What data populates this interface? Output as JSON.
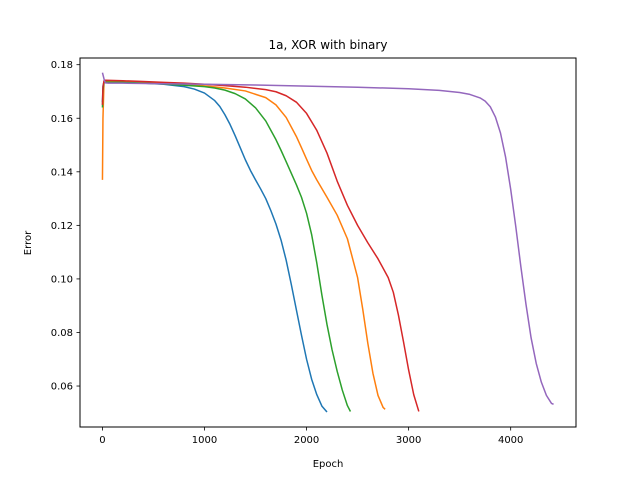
{
  "chart_data": {
    "type": "line",
    "title": "1a, XOR with binary",
    "xlabel": "Epoch",
    "ylabel": "Error",
    "xlim": [
      -220,
      4640
    ],
    "ylim": [
      0.0447,
      0.1825
    ],
    "xticks": [
      0,
      1000,
      2000,
      3000,
      4000
    ],
    "yticks": [
      0.06,
      0.08,
      0.1,
      0.12,
      0.14,
      0.16,
      0.18
    ],
    "xtick_labels": [
      "0",
      "1000",
      "2000",
      "3000",
      "4000"
    ],
    "ytick_labels": [
      "0.06",
      "0.08",
      "0.10",
      "0.12",
      "0.14",
      "0.16",
      "0.18"
    ],
    "grid": false,
    "series": [
      {
        "color": "#1f77b4",
        "x": [
          0,
          5,
          15,
          30,
          200,
          400,
          600,
          800,
          900,
          1000,
          1100,
          1150,
          1200,
          1250,
          1300,
          1350,
          1400,
          1450,
          1500,
          1550,
          1600,
          1650,
          1700,
          1750,
          1800,
          1850,
          1900,
          1950,
          2000,
          2050,
          2100,
          2150,
          2200
        ],
        "y": [
          0.166,
          0.172,
          0.1735,
          0.1736,
          0.1734,
          0.1731,
          0.1727,
          0.1718,
          0.1709,
          0.1694,
          0.1666,
          0.1644,
          0.1613,
          0.1577,
          0.1535,
          0.149,
          0.1445,
          0.1405,
          0.137,
          0.1336,
          0.13,
          0.1255,
          0.1205,
          0.1145,
          0.107,
          0.098,
          0.0885,
          0.079,
          0.07,
          0.0625,
          0.0568,
          0.0525,
          0.0503
        ]
      },
      {
        "color": "#ff7f0e",
        "x": [
          0,
          5,
          15,
          30,
          200,
          400,
          600,
          800,
          1000,
          1200,
          1400,
          1600,
          1700,
          1800,
          1900,
          1950,
          2000,
          2050,
          2100,
          2200,
          2300,
          2400,
          2500,
          2550,
          2600,
          2650,
          2700,
          2750,
          2770
        ],
        "y": [
          0.137,
          0.16,
          0.1735,
          0.1738,
          0.1736,
          0.1733,
          0.173,
          0.1726,
          0.1721,
          0.1713,
          0.1702,
          0.1677,
          0.165,
          0.1603,
          0.1532,
          0.149,
          0.1447,
          0.1405,
          0.137,
          0.1305,
          0.1238,
          0.115,
          0.1005,
          0.0888,
          0.076,
          0.0648,
          0.0565,
          0.052,
          0.0513
        ]
      },
      {
        "color": "#2ca02c",
        "x": [
          0,
          5,
          15,
          30,
          200,
          400,
          600,
          800,
          1000,
          1100,
          1200,
          1300,
          1400,
          1500,
          1600,
          1700,
          1750,
          1800,
          1850,
          1900,
          1950,
          2000,
          2050,
          2100,
          2150,
          2200,
          2250,
          2300,
          2350,
          2400,
          2430
        ],
        "y": [
          0.164,
          0.1705,
          0.1733,
          0.1735,
          0.1734,
          0.1731,
          0.1728,
          0.1723,
          0.1718,
          0.1713,
          0.1705,
          0.1692,
          0.1672,
          0.1639,
          0.159,
          0.152,
          0.148,
          0.1438,
          0.1395,
          0.1352,
          0.1305,
          0.1245,
          0.1165,
          0.106,
          0.094,
          0.083,
          0.0735,
          0.0655,
          0.0585,
          0.0527,
          0.0505
        ]
      },
      {
        "color": "#d62728",
        "x": [
          0,
          5,
          15,
          30,
          200,
          400,
          600,
          800,
          1000,
          1200,
          1400,
          1600,
          1700,
          1800,
          1900,
          2000,
          2100,
          2200,
          2300,
          2400,
          2500,
          2600,
          2700,
          2800,
          2850,
          2900,
          2950,
          3000,
          3050,
          3100
        ],
        "y": [
          0.165,
          0.1715,
          0.174,
          0.1742,
          0.174,
          0.1737,
          0.1734,
          0.1731,
          0.1727,
          0.1722,
          0.1716,
          0.1707,
          0.1699,
          0.1684,
          0.166,
          0.1618,
          0.1555,
          0.147,
          0.1365,
          0.1275,
          0.12,
          0.1135,
          0.1075,
          0.1005,
          0.095,
          0.0865,
          0.0765,
          0.066,
          0.0568,
          0.0505
        ]
      },
      {
        "color": "#9467bd",
        "x": [
          0,
          10,
          20,
          30,
          60,
          200,
          600,
          1000,
          1500,
          2000,
          2500,
          3000,
          3300,
          3500,
          3600,
          3700,
          3750,
          3800,
          3850,
          3900,
          3950,
          4000,
          4050,
          4100,
          4150,
          4200,
          4250,
          4300,
          4350,
          4400,
          4420
        ],
        "y": [
          0.177,
          0.1755,
          0.174,
          0.1732,
          0.1731,
          0.1731,
          0.1729,
          0.1727,
          0.1724,
          0.172,
          0.1716,
          0.171,
          0.1704,
          0.1696,
          0.1689,
          0.1676,
          0.1664,
          0.1643,
          0.1605,
          0.1545,
          0.1455,
          0.1335,
          0.1195,
          0.1045,
          0.0905,
          0.078,
          0.0685,
          0.0615,
          0.0565,
          0.0535,
          0.0532
        ]
      }
    ]
  }
}
